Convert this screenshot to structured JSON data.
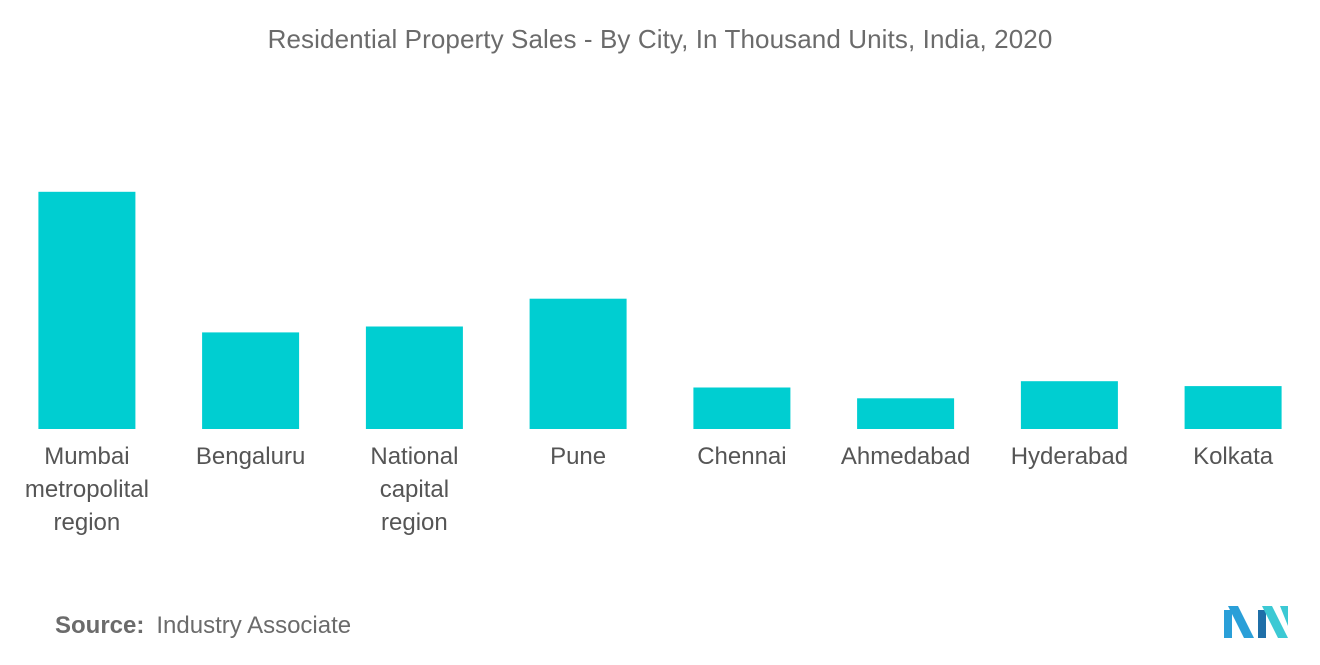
{
  "chart_data": {
    "type": "bar",
    "title": "Residential Property Sales -  By City, In Thousand Units, India, 2020",
    "categories": [
      "Mumbai metropolital region",
      "Bengaluru",
      "National capital region",
      "Pune",
      "Chennai",
      "Ahmedabad",
      "Hyderabad",
      "Kolkata"
    ],
    "category_lines": [
      [
        "Mumbai",
        "metropolital",
        "region"
      ],
      [
        "Bengaluru"
      ],
      [
        "National",
        "capital",
        "region"
      ],
      [
        "Pune"
      ],
      [
        "Chennai"
      ],
      [
        "Ahmedabad"
      ],
      [
        "Hyderabad"
      ],
      [
        "Kolkata"
      ]
    ],
    "values": [
      48.6,
      19.8,
      21.0,
      26.7,
      8.5,
      6.3,
      9.8,
      8.8
    ],
    "ylim": [
      0,
      50
    ],
    "xlabel": "",
    "ylabel": "",
    "grid": false,
    "legend": "none",
    "bar_color": "#00CED1"
  },
  "source": {
    "label": "Source:",
    "text": "Industry Associate"
  },
  "logo": {
    "icon": "mordor-intelligence-logo-icon",
    "colors": [
      "#2A9FD8",
      "#1F6FA8",
      "#3CC9D4"
    ]
  }
}
